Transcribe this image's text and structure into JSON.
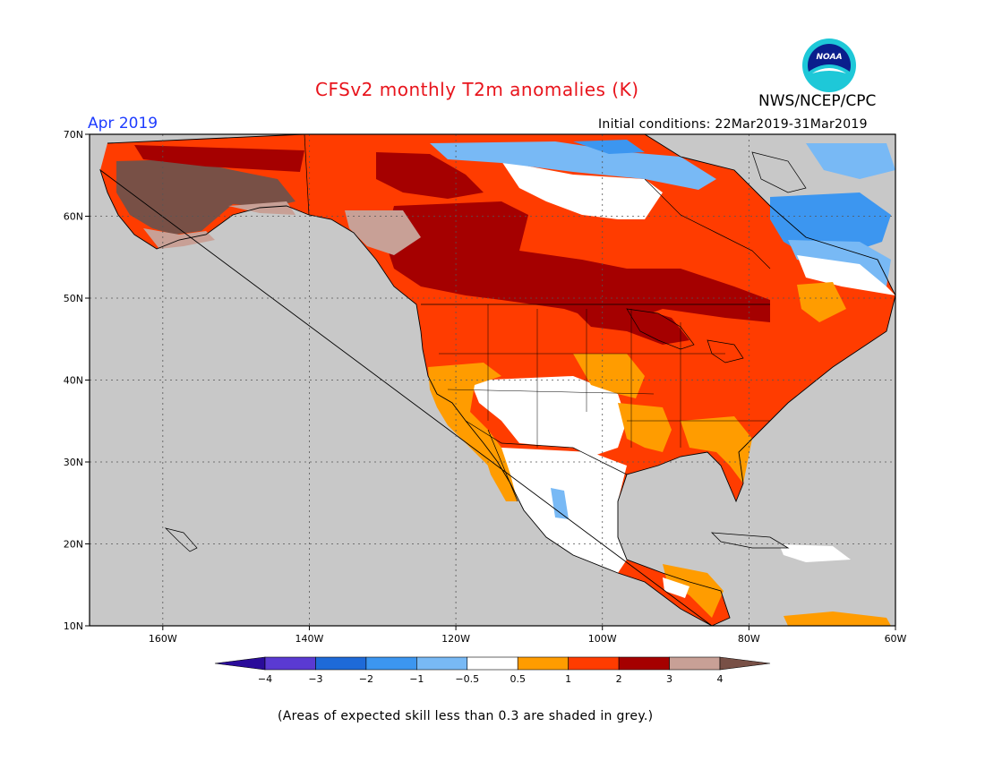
{
  "title": "CFSv2 monthly T2m anomalies (K)",
  "agency": "NWS/NCEP/CPC",
  "logo_text": "NOAA",
  "forecast_month": "Apr 2019",
  "initial_conditions": "Initial conditions: 22Mar2019-31Mar2019",
  "footnote": "(Areas of expected skill less than 0.3 are shaded in grey.)",
  "map": {
    "lon_range": [
      -170,
      -60
    ],
    "lat_range": [
      10,
      70
    ],
    "lat_ticks": [
      "70N",
      "60N",
      "50N",
      "40N",
      "30N",
      "20N",
      "10N"
    ],
    "lon_ticks": [
      "160W",
      "140W",
      "120W",
      "100W",
      "80W",
      "60W"
    ],
    "ocean_color": "#c8c8c8",
    "gridlines": "dotted"
  },
  "legend": {
    "labels": [
      "-4",
      "-3",
      "-2",
      "-1",
      "-0.5",
      "0.5",
      "1",
      "2",
      "3",
      "4"
    ],
    "colors": [
      "#2a0c9a",
      "#5a3ad2",
      "#1e6ad8",
      "#3c96f0",
      "#78b9f5",
      "#ffffff",
      "#ff9c00",
      "#ff3c00",
      "#a50000",
      "#c8a096",
      "#785046"
    ]
  }
}
